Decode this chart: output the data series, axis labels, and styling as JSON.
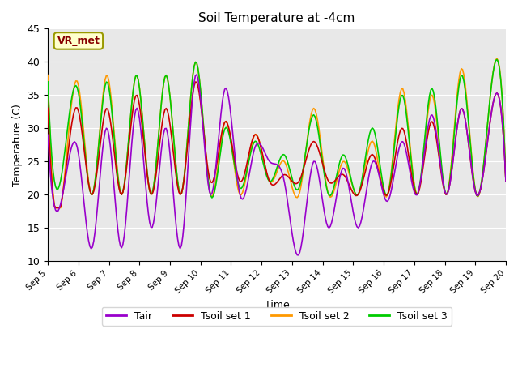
{
  "title": "Soil Temperature at -4cm",
  "xlabel": "Time",
  "ylabel": "Temperature (C)",
  "ylim": [
    10,
    45
  ],
  "xlim": [
    0,
    360
  ],
  "yticks": [
    10,
    15,
    20,
    25,
    30,
    35,
    40,
    45
  ],
  "xtick_labels": [
    "Sep 5",
    "Sep 6",
    "Sep 7",
    "Sep 8",
    "Sep 9",
    "Sep 10",
    "Sep 11",
    "Sep 12",
    "Sep 13",
    "Sep 14",
    "Sep 15",
    "Sep 16",
    "Sep 17",
    "Sep 18",
    "Sep 19",
    "Sep 20"
  ],
  "xtick_positions": [
    0,
    24,
    48,
    72,
    96,
    120,
    144,
    168,
    192,
    216,
    240,
    264,
    288,
    312,
    336,
    360
  ],
  "line_colors": {
    "Tair": "#9900cc",
    "Tsoil_set1": "#cc0000",
    "Tsoil_set2": "#ff9900",
    "Tsoil_set3": "#00cc00"
  },
  "vr_met_label": "VR_met",
  "vr_met_text_color": "#880000",
  "vr_met_bg_color": "#ffffcc",
  "vr_met_edge_color": "#999900",
  "plot_bg_color": "#e8e8e8",
  "fig_bg_color": "#ffffff",
  "grid_color": "#ffffff",
  "linewidth": 1.2,
  "tair_peaks": [
    29,
    20,
    27,
    12,
    30,
    12,
    33,
    15,
    30,
    12,
    38,
    20,
    36,
    20,
    27,
    25,
    22,
    11,
    25,
    15,
    24,
    15,
    25,
    19,
    28,
    20,
    32,
    20,
    33,
    20,
    32,
    22
  ],
  "tsoil1_peaks": [
    33,
    20,
    33,
    20,
    33,
    20,
    35,
    20,
    33,
    20,
    37,
    22,
    31,
    22,
    29,
    22,
    23,
    22,
    28,
    22,
    23,
    20,
    26,
    20,
    30,
    20,
    31,
    20,
    33,
    20,
    32,
    22
  ],
  "tsoil2_peaks": [
    38,
    20,
    37,
    20,
    38,
    20,
    38,
    20,
    38,
    20,
    40,
    20,
    31,
    20,
    29,
    22,
    25,
    20,
    33,
    20,
    25,
    20,
    28,
    20,
    36,
    20,
    35,
    20,
    39,
    20,
    36,
    22
  ],
  "tsoil3_peaks": [
    37,
    24,
    36,
    20,
    37,
    20,
    38,
    20,
    38,
    20,
    40,
    20,
    30,
    21,
    28,
    22,
    26,
    21,
    32,
    20,
    26,
    20,
    30,
    20,
    35,
    20,
    36,
    20,
    38,
    20,
    36,
    22
  ]
}
